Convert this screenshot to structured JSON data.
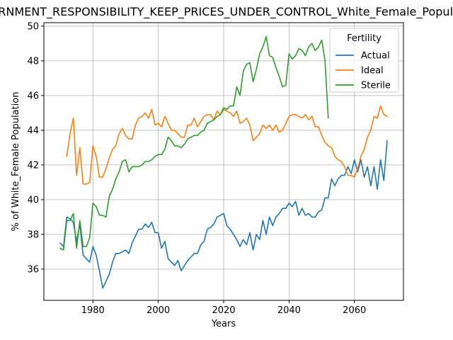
{
  "chart_data": {
    "type": "line",
    "title": "GOVERNMENT_RESPONSIBILITY_KEEP_PRICES_UNDER_CONTROL_White_Female_Population",
    "xlabel": "Years",
    "ylabel": "% of White_Female Population",
    "xlim": [
      1965,
      2075
    ],
    "ylim": [
      34.2,
      50.2
    ],
    "xticks": [
      1980,
      2000,
      2020,
      2040,
      2060
    ],
    "yticks": [
      36,
      38,
      40,
      42,
      44,
      46,
      48,
      50
    ],
    "grid": true,
    "legend": {
      "title": "Fertility",
      "placement": "top-right"
    },
    "colors": {
      "Actual": "#1f77b4",
      "Ideal": "#ff7f0e",
      "Sterile": "#2ca02c"
    },
    "series": [
      {
        "name": "Actual",
        "x": [
          1970,
          1971,
          1972,
          1973,
          1974,
          1975,
          1976,
          1977,
          1978,
          1979,
          1980,
          1981,
          1982,
          1983,
          1984,
          1985,
          1986,
          1987,
          1988,
          1989,
          1990,
          1991,
          1992,
          1993,
          1994,
          1995,
          1996,
          1997,
          1998,
          1999,
          2000,
          2001,
          2002,
          2003,
          2004,
          2005,
          2006,
          2007,
          2008,
          2009,
          2010,
          2011,
          2012,
          2013,
          2014,
          2015,
          2016,
          2017,
          2018,
          2019,
          2020,
          2021,
          2022,
          2023,
          2024,
          2025,
          2026,
          2027,
          2028,
          2029,
          2030,
          2031,
          2032,
          2033,
          2034,
          2035,
          2036,
          2037,
          2038,
          2039,
          2040,
          2041,
          2042,
          2043,
          2044,
          2045,
          2046,
          2047,
          2048,
          2049,
          2050,
          2051,
          2052,
          2053,
          2054,
          2055,
          2056,
          2057,
          2058,
          2059,
          2060,
          2061,
          2062,
          2063,
          2064,
          2065,
          2066,
          2067,
          2068,
          2069,
          2070
        ],
        "values": [
          37.5,
          37.3,
          39.0,
          38.9,
          38.7,
          37.6,
          38.6,
          36.8,
          36.6,
          36.4,
          37.3,
          36.8,
          35.9,
          34.9,
          35.3,
          35.7,
          36.4,
          36.9,
          36.9,
          37.0,
          37.1,
          36.9,
          37.5,
          37.9,
          38.3,
          38.3,
          38.6,
          38.4,
          38.7,
          38.1,
          38.1,
          37.2,
          37.6,
          36.6,
          36.4,
          36.2,
          36.5,
          35.9,
          36.2,
          36.5,
          36.7,
          36.9,
          36.9,
          37.4,
          37.6,
          38.3,
          38.4,
          38.6,
          39.0,
          39.1,
          39.2,
          38.5,
          38.3,
          38.0,
          37.7,
          37.3,
          37.7,
          37.4,
          38.1,
          37.1,
          38.0,
          37.7,
          38.8,
          38.0,
          39.0,
          38.5,
          39.0,
          39.2,
          39.5,
          39.5,
          39.8,
          39.6,
          39.9,
          39.1,
          39.5,
          39.1,
          39.2,
          39.0,
          39.0,
          39.3,
          39.4,
          40.1,
          40.1,
          41.2,
          40.8,
          41.2,
          41.4,
          41.4,
          41.9,
          41.5,
          42.3,
          41.6,
          42.3,
          41.3,
          41.9,
          40.8,
          41.9,
          40.6,
          42.3,
          41.1,
          43.4
        ]
      },
      {
        "name": "Ideal",
        "x": [
          1972,
          1973,
          1974,
          1975,
          1976,
          1977,
          1978,
          1979,
          1980,
          1981,
          1982,
          1983,
          1984,
          1985,
          1986,
          1987,
          1988,
          1989,
          1990,
          1991,
          1992,
          1993,
          1994,
          1995,
          1996,
          1997,
          1998,
          1999,
          2000,
          2001,
          2002,
          2003,
          2004,
          2005,
          2006,
          2007,
          2008,
          2009,
          2010,
          2011,
          2012,
          2013,
          2014,
          2015,
          2016,
          2017,
          2018,
          2019,
          2020,
          2021,
          2022,
          2023,
          2024,
          2025,
          2026,
          2027,
          2028,
          2029,
          2030,
          2031,
          2032,
          2033,
          2034,
          2035,
          2036,
          2037,
          2038,
          2039,
          2040,
          2041,
          2042,
          2043,
          2044,
          2045,
          2046,
          2047,
          2048,
          2049,
          2050,
          2051,
          2052,
          2053,
          2054,
          2055,
          2056,
          2057,
          2058,
          2059,
          2060,
          2061,
          2062,
          2063,
          2064,
          2065,
          2066,
          2067,
          2068,
          2069,
          2070
        ],
        "values": [
          42.5,
          43.8,
          44.7,
          41.4,
          43.0,
          40.9,
          40.9,
          41.0,
          43.1,
          42.5,
          41.3,
          41.3,
          41.8,
          42.4,
          42.9,
          43.1,
          43.8,
          44.1,
          43.7,
          43.5,
          43.5,
          44.3,
          44.7,
          44.8,
          45.0,
          44.7,
          45.2,
          44.3,
          44.4,
          44.2,
          44.8,
          44.4,
          44.0,
          44.0,
          43.8,
          43.6,
          43.6,
          44.3,
          44.3,
          44.7,
          44.2,
          44.5,
          44.8,
          44.9,
          44.9,
          44.6,
          45.1,
          44.9,
          45.2,
          45.1,
          45.0,
          44.8,
          45.1,
          44.4,
          44.5,
          44.7,
          44.3,
          43.4,
          43.6,
          43.8,
          44.3,
          44.1,
          44.3,
          44.0,
          44.3,
          43.9,
          44.0,
          44.4,
          44.8,
          44.9,
          44.9,
          44.8,
          44.7,
          44.9,
          44.6,
          44.8,
          44.2,
          44.2,
          43.7,
          43.3,
          43.1,
          43.0,
          42.5,
          42.3,
          42.2,
          41.9,
          41.4,
          41.4,
          41.3,
          41.8,
          42.5,
          42.9,
          43.6,
          44.0,
          44.8,
          44.7,
          45.4,
          44.9,
          44.8
        ]
      },
      {
        "name": "Sterile",
        "x": [
          1970,
          1971,
          1972,
          1973,
          1974,
          1975,
          1976,
          1977,
          1978,
          1979,
          1980,
          1981,
          1982,
          1983,
          1984,
          1985,
          1986,
          1987,
          1988,
          1989,
          1990,
          1991,
          1992,
          1993,
          1994,
          1995,
          1996,
          1997,
          1998,
          1999,
          2000,
          2001,
          2002,
          2003,
          2004,
          2005,
          2006,
          2007,
          2008,
          2009,
          2010,
          2011,
          2012,
          2013,
          2014,
          2015,
          2016,
          2017,
          2018,
          2019,
          2020,
          2021,
          2022,
          2023,
          2024,
          2025,
          2026,
          2027,
          2028,
          2029,
          2030,
          2031,
          2032,
          2033,
          2034,
          2035,
          2036,
          2037,
          2038,
          2039,
          2040,
          2041,
          2042,
          2043,
          2044,
          2045,
          2046,
          2047,
          2048,
          2049,
          2050,
          2051,
          2052
        ],
        "values": [
          37.2,
          37.1,
          38.8,
          38.8,
          39.2,
          37.2,
          38.8,
          37.3,
          37.3,
          37.8,
          39.8,
          39.6,
          39.1,
          39.1,
          39.0,
          40.2,
          40.6,
          41.2,
          41.6,
          42.2,
          42.3,
          41.6,
          41.9,
          41.9,
          41.9,
          42.0,
          42.2,
          42.2,
          42.3,
          42.5,
          42.6,
          42.6,
          42.9,
          43.6,
          43.4,
          43.1,
          43.1,
          43.0,
          43.2,
          43.5,
          43.6,
          43.7,
          43.7,
          43.9,
          44.0,
          44.4,
          44.5,
          44.6,
          44.8,
          44.9,
          45.3,
          45.2,
          45.4,
          45.4,
          46.5,
          46.0,
          47.4,
          47.8,
          47.9,
          46.8,
          47.5,
          48.4,
          48.8,
          49.4,
          48.3,
          48.2,
          47.6,
          47.1,
          46.5,
          46.6,
          48.4,
          48.1,
          48.3,
          48.7,
          48.6,
          48.3,
          48.8,
          49.0,
          48.6,
          48.8,
          49.2,
          48.0,
          44.7
        ]
      }
    ]
  }
}
